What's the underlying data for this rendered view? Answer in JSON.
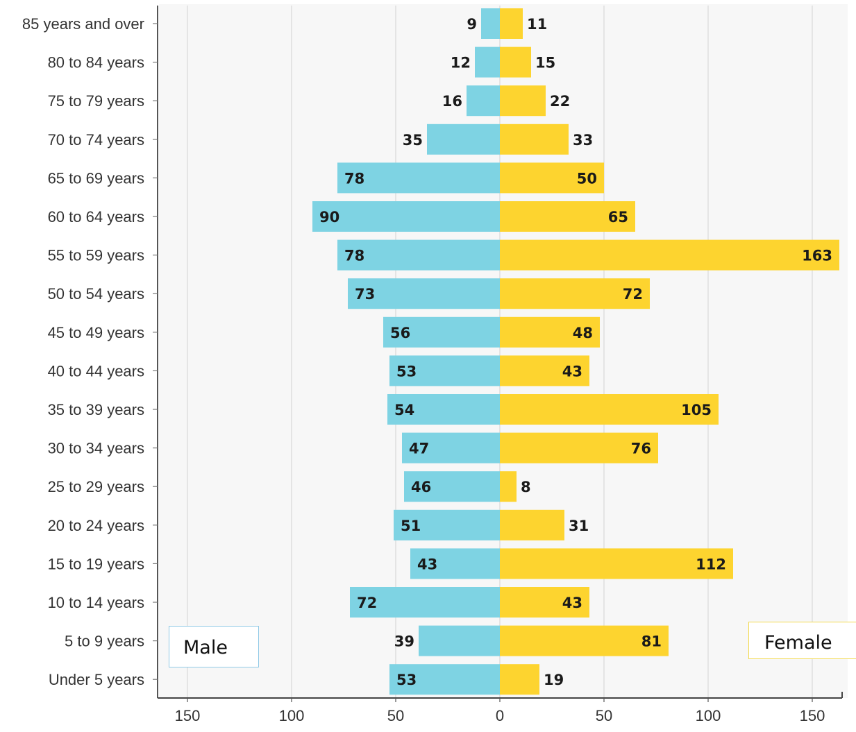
{
  "chart_data": {
    "type": "bar",
    "orientation": "horizontal",
    "layout": "population-pyramid",
    "categories": [
      "85 years and over",
      "80 to 84 years",
      "75 to 79 years",
      "70 to 74 years",
      "65 to 69 years",
      "60 to 64 years",
      "55 to 59 years",
      "50 to 54 years",
      "45 to 49 years",
      "40 to 44 years",
      "35 to 39 years",
      "30 to 34 years",
      "25 to 29 years",
      "20 to 24 years",
      "15 to 19 years",
      "10 to 14 years",
      "5 to 9 years",
      "Under 5 years"
    ],
    "series": [
      {
        "name": "Male",
        "side": "left",
        "color": "#7ed3e3",
        "values": [
          9,
          12,
          16,
          35,
          78,
          90,
          78,
          73,
          56,
          53,
          54,
          47,
          46,
          51,
          43,
          72,
          39,
          53
        ]
      },
      {
        "name": "Female",
        "side": "right",
        "color": "#fdd42f",
        "values": [
          11,
          15,
          22,
          33,
          50,
          65,
          163,
          72,
          48,
          43,
          105,
          76,
          8,
          31,
          112,
          43,
          81,
          19
        ]
      }
    ],
    "x_ticks": [
      {
        "value": -150,
        "label": "150"
      },
      {
        "value": -100,
        "label": "100"
      },
      {
        "value": -50,
        "label": "50"
      },
      {
        "value": 0,
        "label": "0"
      },
      {
        "value": 50,
        "label": "50"
      },
      {
        "value": 100,
        "label": "100"
      },
      {
        "value": 150,
        "label": "150"
      }
    ],
    "xlim": [
      -165,
      165
    ],
    "grid": true,
    "legend": [
      {
        "label": "Male",
        "placement": "bottom-left"
      },
      {
        "label": "Female",
        "placement": "bottom-right"
      }
    ]
  }
}
